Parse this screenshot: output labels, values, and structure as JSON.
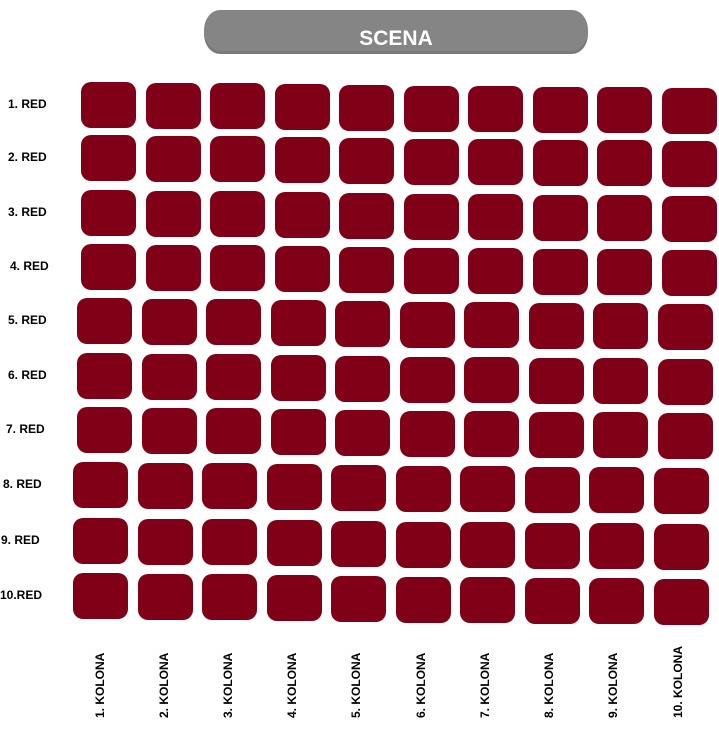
{
  "stage": {
    "label": "SCENA"
  },
  "rows": [
    "1. RED",
    "2. RED",
    "3. RED",
    "4. RED",
    "5. RED",
    "6. RED",
    "7. RED",
    "8. RED",
    "9. RED",
    "10.RED"
  ],
  "columns": [
    "1. KOLONA",
    "2. KOLONA",
    "3. KOLONA",
    "4. KOLONA",
    "5. KOLONA",
    "6. KOLONA",
    "7. KOLONA",
    "8. KOLONA",
    "9. KOLONA",
    "10. KOLONA"
  ],
  "colors": {
    "seat": "#800018",
    "stage": "#858585"
  }
}
